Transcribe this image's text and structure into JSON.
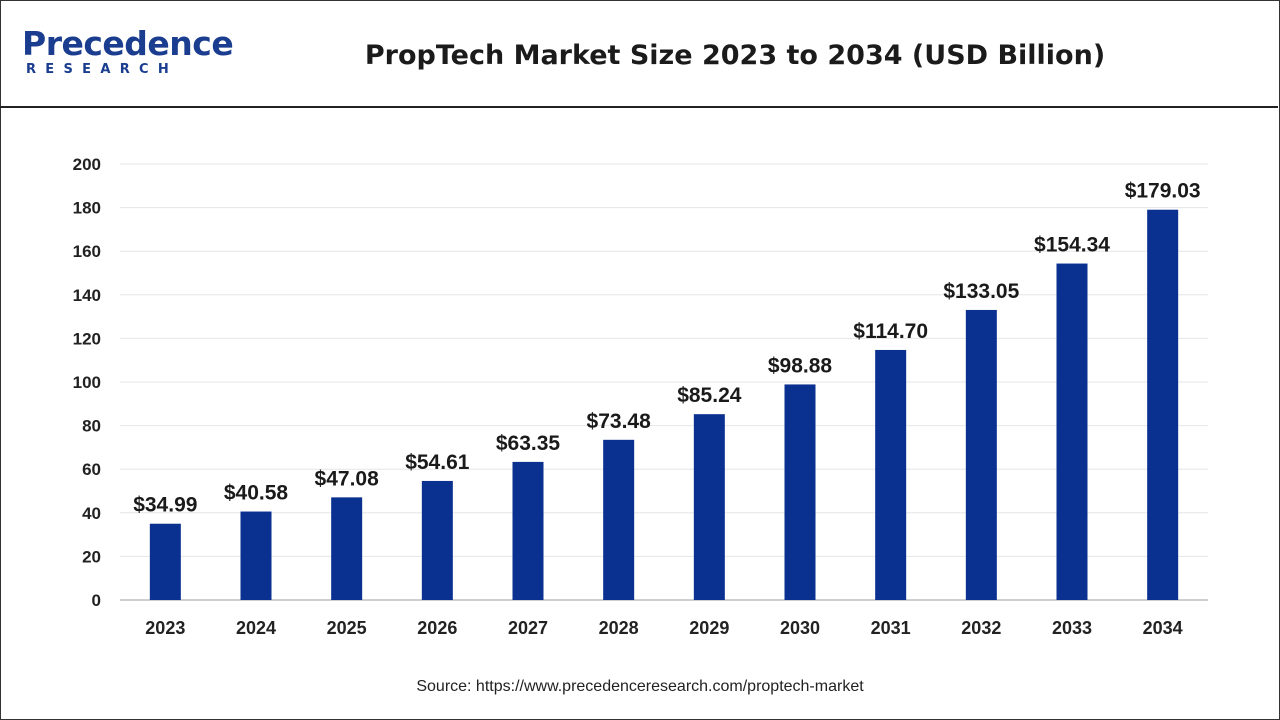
{
  "brand": {
    "name_first_letter": "P",
    "name_rest": "recedence",
    "subtitle": "RESEARCH",
    "logo_color": "#1a3d8f",
    "logo_accent": "#e03a2f"
  },
  "colors": {
    "bar": "#0a3190",
    "grid": "#e6e6e6",
    "axis": "#bdbdbd"
  },
  "footer": {
    "source": "Source: https://www.precedenceresearch.com/proptech-market"
  },
  "chart_data": {
    "type": "bar",
    "title": "PropTech Market Size 2023 to 2034 (USD Billion)",
    "xlabel": "",
    "ylabel": "",
    "categories": [
      "2023",
      "2024",
      "2025",
      "2026",
      "2027",
      "2028",
      "2029",
      "2030",
      "2031",
      "2032",
      "2033",
      "2034"
    ],
    "values": [
      34.99,
      40.58,
      47.08,
      54.61,
      63.35,
      73.48,
      85.24,
      98.88,
      114.7,
      133.05,
      154.34,
      179.03
    ],
    "value_labels": [
      "$34.99",
      "$40.58",
      "$47.08",
      "$54.61",
      "$63.35",
      "$73.48",
      "$85.24",
      "$98.88",
      "$114.70",
      "$133.05",
      "$154.34",
      "$179.03"
    ],
    "ylim": [
      0,
      200
    ],
    "yticks": [
      0,
      20,
      40,
      60,
      80,
      100,
      120,
      140,
      160,
      180,
      200
    ],
    "grid": true,
    "legend": "none"
  }
}
